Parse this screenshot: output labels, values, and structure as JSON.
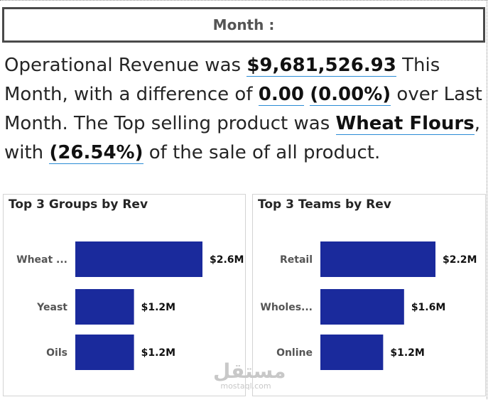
{
  "header": {
    "month_label": "Month :"
  },
  "summary": {
    "t1": "Operational Revenue was ",
    "revenue": "$9,681,526.93",
    "t2": " This Month, with a difference of ",
    "difference": "0.00",
    "t3": " ",
    "difference_pct": "(0.00%)",
    "t4": " over Last Month. The Top selling product was ",
    "top_product": "Wheat Flours",
    "t5": ", with ",
    "share_pct": "(26.54%)",
    "t6": " of the sale of all product."
  },
  "chart_data": [
    {
      "type": "bar",
      "orientation": "horizontal",
      "title": "Top 3 Groups by Rev",
      "categories": [
        "Wheat ...",
        "Yeast",
        "Oils"
      ],
      "values": [
        2.6,
        1.2,
        1.2
      ],
      "data_labels": [
        "$2.6M",
        "$1.2M",
        "$1.2M"
      ],
      "unit": "$M",
      "bar_color": "#1a2a9c",
      "xlim": [
        0,
        2.6
      ]
    },
    {
      "type": "bar",
      "orientation": "horizontal",
      "title": "Top 3 Teams by Rev",
      "categories": [
        "Retail",
        "Wholes...",
        "Online"
      ],
      "values": [
        2.2,
        1.6,
        1.2
      ],
      "data_labels": [
        "$2.2M",
        "$1.6M",
        "$1.2M"
      ],
      "unit": "$M",
      "bar_color": "#1a2a9c",
      "xlim": [
        0,
        2.2
      ]
    }
  ],
  "watermark": {
    "main": "مستقل",
    "sub": "mostaql.com"
  }
}
